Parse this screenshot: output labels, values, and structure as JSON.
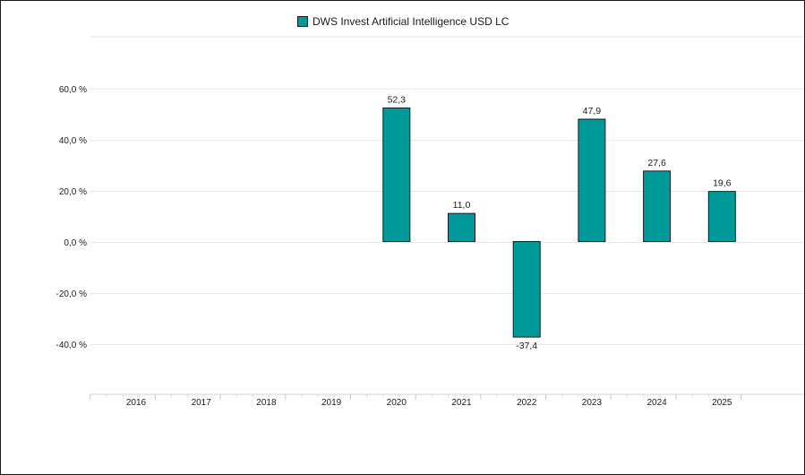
{
  "chart_data": {
    "type": "bar",
    "categories": [
      "2016",
      "2017",
      "2018",
      "2019",
      "2020",
      "2021",
      "2022",
      "2023",
      "2024",
      "2025"
    ],
    "series": [
      {
        "name": "DWS Invest Artificial Intelligence USD LC",
        "values": [
          null,
          null,
          null,
          null,
          52.3,
          11.0,
          -37.4,
          47.9,
          27.6,
          19.6
        ],
        "labels": [
          "",
          "",
          "",
          "",
          "52,3",
          "11,0",
          "-37,4",
          "47,9",
          "27,6",
          "19,6"
        ]
      }
    ],
    "y_ticks": [
      60,
      40,
      20,
      0,
      -20,
      -40
    ],
    "y_tick_labels": [
      "60,0 %",
      "40,0 %",
      "20,0 %",
      "0,0 %",
      "-20,0 %",
      "-40,0 %"
    ],
    "ylim": [
      -60,
      80
    ],
    "legend": "top-center",
    "grid": true,
    "colors": {
      "bar": "#009999",
      "bar_outline": "#1a1a1a",
      "grid": "#e6e6e6",
      "text": "#1a1a1a"
    }
  }
}
